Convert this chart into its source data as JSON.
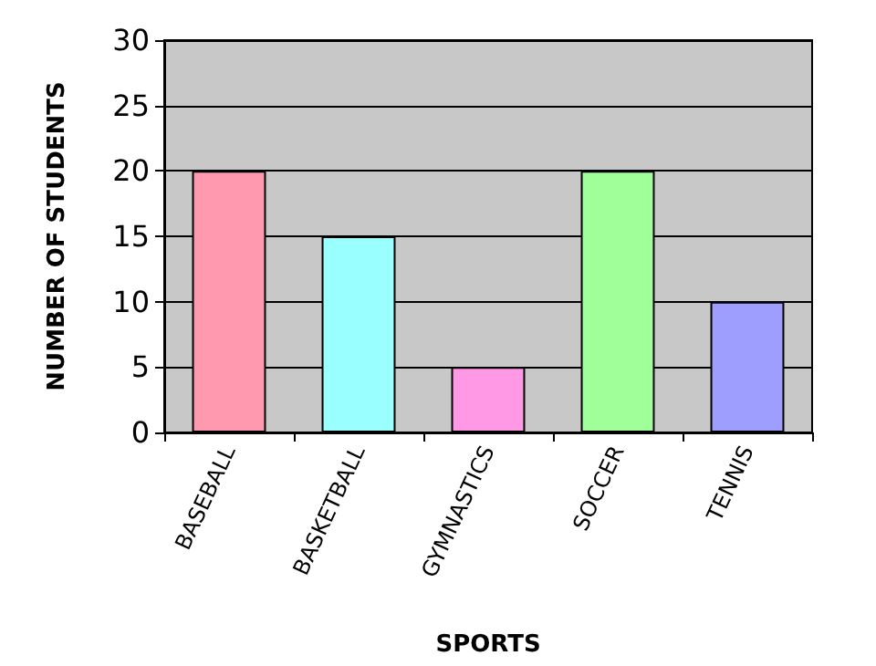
{
  "chart_data": {
    "type": "bar",
    "xlabel": "SPORTS",
    "ylabel": "NUMBER OF STUDENTS",
    "categories": [
      "BASEBALL",
      "BASKETBALL",
      "GYMNASTICS",
      "SOCCER",
      "TENNIS"
    ],
    "values": [
      20,
      15,
      5,
      20,
      10
    ],
    "colors": [
      "#ff99b0",
      "#99ffff",
      "#ff99e6",
      "#a0ff99",
      "#9e9eff"
    ],
    "ylim": [
      0,
      30
    ],
    "yticks": [
      0,
      5,
      10,
      15,
      20,
      25,
      30
    ],
    "grid": "y"
  }
}
